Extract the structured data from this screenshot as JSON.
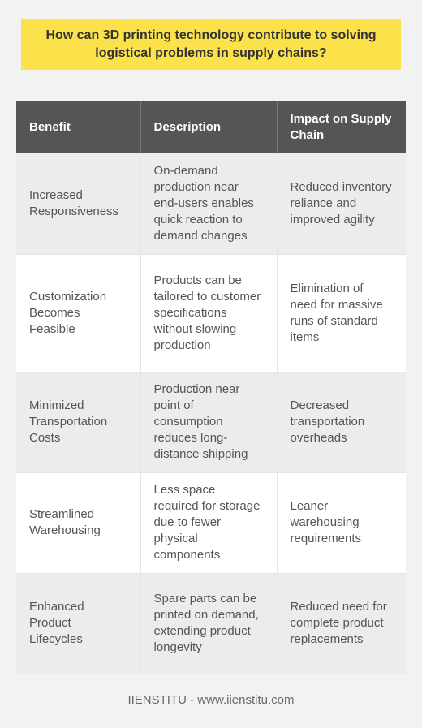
{
  "title": "How can 3D printing technology contribute to solving logistical problems in supply chains?",
  "table": {
    "headers": [
      "Benefit",
      "Description",
      "Impact on Supply Chain"
    ],
    "rows": [
      [
        "Increased Responsiveness",
        "On-demand production near end-users enables quick reaction to demand changes",
        "Reduced inventory reliance and improved agility"
      ],
      [
        "Customization Becomes Feasible",
        "Products can be tailored to customer specifications without slowing production",
        "Elimination of need for massive runs of standard items"
      ],
      [
        "Minimized Transportation Costs",
        "Production near point of consumption reduces long-distance shipping",
        "Decreased transportation overheads"
      ],
      [
        "Streamlined Warehousing",
        "Less space required for storage due to fewer physical components",
        "Leaner warehousing requirements"
      ],
      [
        "Enhanced Product Lifecycles",
        "Spare parts can be printed on demand, extending product longevity",
        "Reduced need for complete product replacements"
      ]
    ]
  },
  "footer": "IIENSTITU - www.iienstitu.com",
  "colors": {
    "title_bg": "#fbe14a",
    "header_bg": "#555555",
    "row_odd": "#ececec",
    "row_even": "#ffffff",
    "page_bg": "#f2f2f2"
  }
}
